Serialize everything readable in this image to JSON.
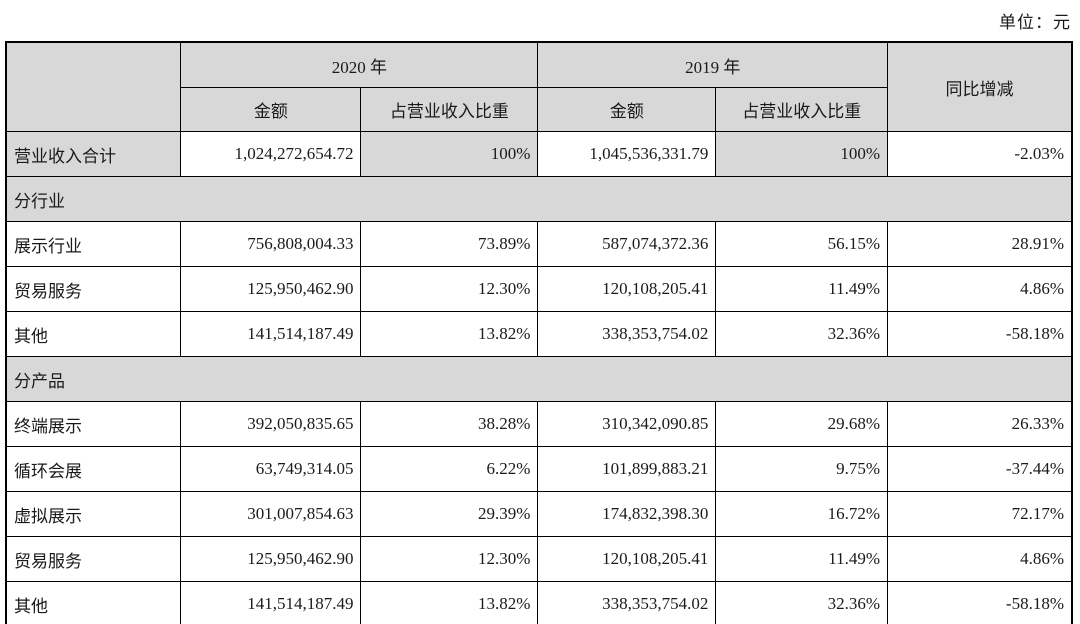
{
  "unit_label": "单位：元",
  "colors": {
    "header_bg": "#d8d8d8",
    "shaded_bg": "#d8d8d8",
    "border": "#000000",
    "text": "#1a1a1a"
  },
  "table": {
    "header": {
      "year_2020": "2020 年",
      "year_2019": "2019 年",
      "yoy": "同比增减",
      "amount": "金额",
      "pct_of_revenue": "占营业收入比重"
    },
    "rows": [
      {
        "type": "total",
        "label": "营业收入合计",
        "amt2020": "1,024,272,654.72",
        "pct2020": "100%",
        "amt2019": "1,045,536,331.79",
        "pct2019": "100%",
        "yoy": "-2.03%"
      },
      {
        "type": "section",
        "label": "分行业"
      },
      {
        "type": "data",
        "label": "展示行业",
        "amt2020": "756,808,004.33",
        "pct2020": "73.89%",
        "amt2019": "587,074,372.36",
        "pct2019": "56.15%",
        "yoy": "28.91%"
      },
      {
        "type": "data",
        "label": "贸易服务",
        "amt2020": "125,950,462.90",
        "pct2020": "12.30%",
        "amt2019": "120,108,205.41",
        "pct2019": "11.49%",
        "yoy": "4.86%"
      },
      {
        "type": "data",
        "label": "其他",
        "amt2020": "141,514,187.49",
        "pct2020": "13.82%",
        "amt2019": "338,353,754.02",
        "pct2019": "32.36%",
        "yoy": "-58.18%"
      },
      {
        "type": "section",
        "label": "分产品"
      },
      {
        "type": "data",
        "label": "终端展示",
        "amt2020": "392,050,835.65",
        "pct2020": "38.28%",
        "amt2019": "310,342,090.85",
        "pct2019": "29.68%",
        "yoy": "26.33%"
      },
      {
        "type": "data",
        "label": "循环会展",
        "amt2020": "63,749,314.05",
        "pct2020": "6.22%",
        "amt2019": "101,899,883.21",
        "pct2019": "9.75%",
        "yoy": "-37.44%"
      },
      {
        "type": "data",
        "label": "虚拟展示",
        "amt2020": "301,007,854.63",
        "pct2020": "29.39%",
        "amt2019": "174,832,398.30",
        "pct2019": "16.72%",
        "yoy": "72.17%"
      },
      {
        "type": "data",
        "label": "贸易服务",
        "amt2020": "125,950,462.90",
        "pct2020": "12.30%",
        "amt2019": "120,108,205.41",
        "pct2019": "11.49%",
        "yoy": "4.86%"
      },
      {
        "type": "data",
        "label": "其他",
        "amt2020": "141,514,187.49",
        "pct2020": "13.82%",
        "amt2019": "338,353,754.02",
        "pct2019": "32.36%",
        "yoy": "-58.18%"
      }
    ]
  }
}
